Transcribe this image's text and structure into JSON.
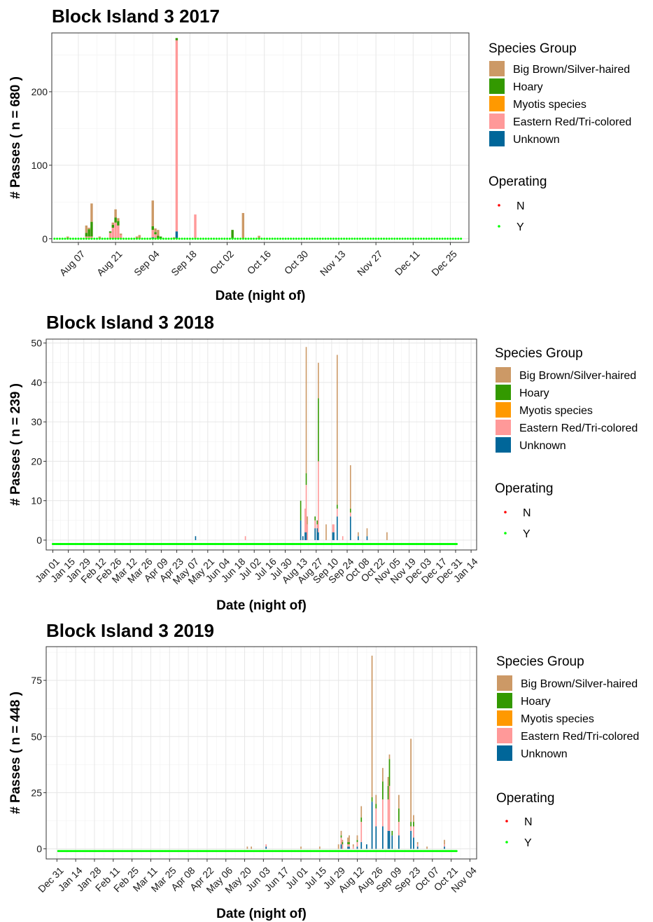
{
  "legend": {
    "species_title": "Species Group",
    "species": [
      {
        "label": "Big Brown/Silver-haired",
        "color": "#CC9966"
      },
      {
        "label": "Hoary",
        "color": "#339900"
      },
      {
        "label": "Myotis species",
        "color": "#FF9900"
      },
      {
        "label": "Eastern Red/Tri-colored",
        "color": "#FF9999"
      },
      {
        "label": "Unknown",
        "color": "#006699"
      }
    ],
    "operating_title": "Operating",
    "operating": [
      {
        "label": "N",
        "color": "#FF0000"
      },
      {
        "label": "Y",
        "color": "#00FF00"
      }
    ]
  },
  "chart_data": [
    {
      "type": "bar",
      "stacked": true,
      "title": "Block Island 3 2017",
      "xlabel": "Date (night of)",
      "ylabel": "# Passes ( n = 680 )",
      "x_range": [
        "2017-07-28",
        "2018-01-01"
      ],
      "ylim": [
        -5,
        280
      ],
      "yticks": [
        0,
        100,
        200
      ],
      "xticks": [
        {
          "date": "2017-08-07",
          "label": "Aug 07"
        },
        {
          "date": "2017-08-21",
          "label": "Aug 21"
        },
        {
          "date": "2017-09-04",
          "label": "Sep 04"
        },
        {
          "date": "2017-09-18",
          "label": "Sep 18"
        },
        {
          "date": "2017-10-02",
          "label": "Oct 02"
        },
        {
          "date": "2017-10-16",
          "label": "Oct 16"
        },
        {
          "date": "2017-10-30",
          "label": "Oct 30"
        },
        {
          "date": "2017-11-13",
          "label": "Nov 13"
        },
        {
          "date": "2017-11-27",
          "label": "Nov 27"
        },
        {
          "date": "2017-12-11",
          "label": "Dec 11"
        },
        {
          "date": "2017-12-25",
          "label": "Dec 25"
        }
      ],
      "operating": {
        "status": "Y",
        "start": "2017-07-29",
        "end": "2017-12-29",
        "value": 0
      },
      "bars": [
        {
          "date": "2017-08-03",
          "values": [
            3,
            0,
            0,
            0,
            0
          ]
        },
        {
          "date": "2017-08-10",
          "values": [
            10,
            5,
            0,
            3,
            0
          ]
        },
        {
          "date": "2017-08-11",
          "values": [
            2,
            10,
            0,
            3,
            0
          ]
        },
        {
          "date": "2017-08-12",
          "values": [
            25,
            20,
            0,
            3,
            0
          ]
        },
        {
          "date": "2017-08-15",
          "values": [
            3,
            0,
            0,
            0,
            0
          ]
        },
        {
          "date": "2017-08-19",
          "values": [
            0,
            2,
            0,
            8,
            0
          ]
        },
        {
          "date": "2017-08-20",
          "values": [
            3,
            4,
            0,
            15,
            0
          ]
        },
        {
          "date": "2017-08-21",
          "values": [
            11,
            7,
            0,
            22,
            0
          ]
        },
        {
          "date": "2017-08-22",
          "values": [
            4,
            6,
            0,
            18,
            0
          ]
        },
        {
          "date": "2017-08-23",
          "values": [
            2,
            0,
            0,
            5,
            0
          ]
        },
        {
          "date": "2017-08-29",
          "values": [
            3,
            0,
            0,
            0,
            0
          ]
        },
        {
          "date": "2017-08-30",
          "values": [
            5,
            0,
            0,
            0,
            0
          ]
        },
        {
          "date": "2017-09-04",
          "values": [
            35,
            5,
            0,
            10,
            2
          ]
        },
        {
          "date": "2017-09-05",
          "values": [
            5,
            3,
            0,
            6,
            0
          ]
        },
        {
          "date": "2017-09-06",
          "values": [
            8,
            4,
            0,
            0,
            0
          ]
        },
        {
          "date": "2017-09-07",
          "values": [
            0,
            3,
            0,
            0,
            0
          ]
        },
        {
          "date": "2017-09-12",
          "values": [
            2,
            0,
            0,
            0,
            0
          ]
        },
        {
          "date": "2017-09-13",
          "values": [
            0,
            3,
            0,
            260,
            10
          ]
        },
        {
          "date": "2017-09-20",
          "values": [
            0,
            0,
            0,
            33,
            0
          ]
        },
        {
          "date": "2017-10-04",
          "values": [
            0,
            12,
            0,
            0,
            0
          ]
        },
        {
          "date": "2017-10-08",
          "values": [
            35,
            0,
            0,
            0,
            0
          ]
        },
        {
          "date": "2017-10-14",
          "values": [
            3,
            1,
            0,
            0,
            0
          ]
        }
      ]
    },
    {
      "type": "bar",
      "stacked": true,
      "title": "Block Island 3 2018",
      "xlabel": "Date (night of)",
      "ylabel": "# Passes ( n = 239 )",
      "x_range": [
        "2017-12-26",
        "2019-01-19"
      ],
      "ylim": [
        -2.5,
        51
      ],
      "yticks": [
        0,
        10,
        20,
        30,
        40,
        50
      ],
      "xticks": [
        {
          "date": "2018-01-01",
          "label": "Jan 01"
        },
        {
          "date": "2018-01-15",
          "label": "Jan 15"
        },
        {
          "date": "2018-01-29",
          "label": "Jan 29"
        },
        {
          "date": "2018-02-12",
          "label": "Feb 12"
        },
        {
          "date": "2018-02-26",
          "label": "Feb 26"
        },
        {
          "date": "2018-03-12",
          "label": "Mar 12"
        },
        {
          "date": "2018-03-26",
          "label": "Mar 26"
        },
        {
          "date": "2018-04-09",
          "label": "Apr 09"
        },
        {
          "date": "2018-04-23",
          "label": "Apr 23"
        },
        {
          "date": "2018-05-07",
          "label": "May 07"
        },
        {
          "date": "2018-05-21",
          "label": "May 21"
        },
        {
          "date": "2018-06-04",
          "label": "Jun 04"
        },
        {
          "date": "2018-06-18",
          "label": "Jun 18"
        },
        {
          "date": "2018-07-02",
          "label": "Jul 02"
        },
        {
          "date": "2018-07-16",
          "label": "Jul 16"
        },
        {
          "date": "2018-07-30",
          "label": "Jul 30"
        },
        {
          "date": "2018-08-13",
          "label": "Aug 13"
        },
        {
          "date": "2018-08-27",
          "label": "Aug 27"
        },
        {
          "date": "2018-09-10",
          "label": "Sep 10"
        },
        {
          "date": "2018-09-24",
          "label": "Sep 24"
        },
        {
          "date": "2018-10-08",
          "label": "Oct 08"
        },
        {
          "date": "2018-10-22",
          "label": "Oct 22"
        },
        {
          "date": "2018-11-05",
          "label": "Nov 05"
        },
        {
          "date": "2018-11-19",
          "label": "Nov 19"
        },
        {
          "date": "2018-12-03",
          "label": "Dec 03"
        },
        {
          "date": "2018-12-17",
          "label": "Dec 17"
        },
        {
          "date": "2018-12-31",
          "label": "Dec 31"
        },
        {
          "date": "2019-01-14",
          "label": "Jan 14"
        }
      ],
      "operating": {
        "status": "Y",
        "start": "2018-01-01",
        "end": "2019-01-01",
        "value": -1
      },
      "bars": [
        {
          "date": "2018-05-10",
          "values": [
            0,
            0,
            0,
            0,
            1
          ]
        },
        {
          "date": "2018-06-24",
          "values": [
            0,
            0,
            0,
            1,
            0
          ]
        },
        {
          "date": "2018-08-13",
          "values": [
            0,
            5,
            0,
            0,
            5
          ]
        },
        {
          "date": "2018-08-15",
          "values": [
            0,
            0,
            0,
            0,
            1
          ]
        },
        {
          "date": "2018-08-17",
          "values": [
            0,
            0,
            0,
            6,
            2
          ]
        },
        {
          "date": "2018-08-18",
          "values": [
            32,
            3,
            0,
            12,
            2
          ]
        },
        {
          "date": "2018-08-19",
          "values": [
            2,
            0,
            0,
            4,
            0
          ]
        },
        {
          "date": "2018-08-26",
          "values": [
            0,
            1,
            0,
            2,
            3
          ]
        },
        {
          "date": "2018-08-28",
          "values": [
            0,
            1,
            0,
            1,
            3
          ]
        },
        {
          "date": "2018-08-29",
          "values": [
            9,
            16,
            0,
            18,
            2
          ]
        },
        {
          "date": "2018-09-05",
          "values": [
            4,
            0,
            0,
            0,
            0
          ]
        },
        {
          "date": "2018-09-11",
          "values": [
            0,
            0,
            0,
            2,
            2
          ]
        },
        {
          "date": "2018-09-12",
          "values": [
            0,
            0,
            0,
            2,
            2
          ]
        },
        {
          "date": "2018-09-15",
          "values": [
            38,
            1,
            0,
            2,
            6
          ]
        },
        {
          "date": "2018-09-20",
          "values": [
            0,
            0,
            0,
            1,
            0
          ]
        },
        {
          "date": "2018-09-27",
          "values": [
            11,
            1,
            0,
            1,
            6
          ]
        },
        {
          "date": "2018-10-04",
          "values": [
            1,
            0,
            0,
            0,
            1
          ]
        },
        {
          "date": "2018-10-12",
          "values": [
            2,
            0,
            0,
            0,
            1
          ]
        },
        {
          "date": "2018-10-30",
          "values": [
            2,
            0,
            0,
            0,
            0
          ]
        }
      ]
    },
    {
      "type": "bar",
      "stacked": true,
      "title": "Block Island 3 2019",
      "xlabel": "Date (night of)",
      "ylabel": "# Passes ( n = 448 )",
      "x_range": [
        "2018-12-23",
        "2019-11-09"
      ],
      "ylim": [
        -4.5,
        90
      ],
      "yticks": [
        0,
        25,
        50,
        75
      ],
      "xticks": [
        {
          "date": "2018-12-31",
          "label": "Dec 31"
        },
        {
          "date": "2019-01-14",
          "label": "Jan 14"
        },
        {
          "date": "2019-01-28",
          "label": "Jan 28"
        },
        {
          "date": "2019-02-11",
          "label": "Feb 11"
        },
        {
          "date": "2019-02-25",
          "label": "Feb 25"
        },
        {
          "date": "2019-03-11",
          "label": "Mar 11"
        },
        {
          "date": "2019-03-25",
          "label": "Mar 25"
        },
        {
          "date": "2019-04-08",
          "label": "Apr 08"
        },
        {
          "date": "2019-04-22",
          "label": "Apr 22"
        },
        {
          "date": "2019-05-06",
          "label": "May 06"
        },
        {
          "date": "2019-05-20",
          "label": "May 20"
        },
        {
          "date": "2019-06-03",
          "label": "Jun 03"
        },
        {
          "date": "2019-06-17",
          "label": "Jun 17"
        },
        {
          "date": "2019-07-01",
          "label": "Jul 01"
        },
        {
          "date": "2019-07-15",
          "label": "Jul 15"
        },
        {
          "date": "2019-07-29",
          "label": "Jul 29"
        },
        {
          "date": "2019-08-12",
          "label": "Aug 12"
        },
        {
          "date": "2019-08-26",
          "label": "Aug 26"
        },
        {
          "date": "2019-09-09",
          "label": "Sep 09"
        },
        {
          "date": "2019-09-23",
          "label": "Sep 23"
        },
        {
          "date": "2019-10-07",
          "label": "Oct 07"
        },
        {
          "date": "2019-10-21",
          "label": "Oct 21"
        },
        {
          "date": "2019-11-04",
          "label": "Nov 04"
        }
      ],
      "operating": {
        "status": "Y",
        "start": "2019-01-01",
        "end": "2019-10-25",
        "value": -1
      },
      "bars": [
        {
          "date": "2019-05-22",
          "values": [
            1,
            0,
            0,
            0,
            0
          ]
        },
        {
          "date": "2019-05-25",
          "values": [
            1,
            0,
            0,
            0,
            0
          ]
        },
        {
          "date": "2019-06-05",
          "values": [
            0,
            0,
            0,
            1,
            1
          ]
        },
        {
          "date": "2019-07-01",
          "values": [
            1,
            0,
            0,
            0,
            0
          ]
        },
        {
          "date": "2019-07-15",
          "values": [
            1,
            0,
            0,
            0,
            0
          ]
        },
        {
          "date": "2019-07-29",
          "values": [
            2,
            0,
            0,
            0,
            0
          ]
        },
        {
          "date": "2019-07-31",
          "values": [
            2,
            1,
            0,
            3,
            2
          ]
        },
        {
          "date": "2019-08-01",
          "values": [
            1,
            1,
            0,
            2,
            0
          ]
        },
        {
          "date": "2019-08-05",
          "values": [
            2,
            1,
            0,
            1,
            1
          ]
        },
        {
          "date": "2019-08-06",
          "values": [
            3,
            1,
            0,
            1,
            1
          ]
        },
        {
          "date": "2019-08-09",
          "values": [
            1,
            0,
            0,
            1,
            0
          ]
        },
        {
          "date": "2019-08-12",
          "values": [
            2,
            1,
            0,
            2,
            1
          ]
        },
        {
          "date": "2019-08-15",
          "values": [
            5,
            2,
            0,
            9,
            3
          ]
        },
        {
          "date": "2019-08-19",
          "values": [
            0,
            0,
            0,
            0,
            2
          ]
        },
        {
          "date": "2019-08-23",
          "values": [
            63,
            2,
            0,
            0,
            21
          ]
        },
        {
          "date": "2019-08-26",
          "values": [
            4,
            2,
            0,
            8,
            10
          ]
        },
        {
          "date": "2019-08-31",
          "values": [
            6,
            8,
            0,
            12,
            10
          ]
        },
        {
          "date": "2019-09-04",
          "values": [
            4,
            6,
            0,
            14,
            8
          ]
        },
        {
          "date": "2019-09-05",
          "values": [
            2,
            12,
            0,
            20,
            8
          ]
        },
        {
          "date": "2019-09-07",
          "values": [
            0,
            2,
            0,
            0,
            6
          ]
        },
        {
          "date": "2019-09-12",
          "values": [
            6,
            6,
            0,
            6,
            6
          ]
        },
        {
          "date": "2019-09-21",
          "values": [
            37,
            2,
            0,
            2,
            8
          ]
        },
        {
          "date": "2019-09-23",
          "values": [
            3,
            2,
            0,
            5,
            5
          ]
        },
        {
          "date": "2019-09-26",
          "values": [
            1,
            0,
            0,
            1,
            1
          ]
        },
        {
          "date": "2019-10-03",
          "values": [
            1,
            0,
            0,
            0,
            0
          ]
        },
        {
          "date": "2019-10-16",
          "values": [
            2,
            0,
            0,
            1,
            1
          ]
        }
      ]
    }
  ]
}
